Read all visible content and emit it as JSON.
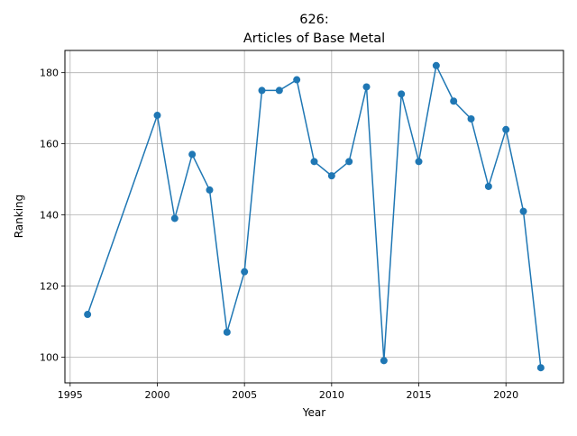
{
  "chart_data": {
    "type": "line",
    "title_line1": "626:",
    "title_line2": "Articles of Base Metal",
    "xlabel": "Year",
    "ylabel": "Ranking",
    "xlim": [
      1994.7,
      2023.3
    ],
    "ylim": [
      92.75,
      186.25
    ],
    "x_ticks": [
      1995,
      2000,
      2005,
      2010,
      2015,
      2020
    ],
    "y_ticks": [
      100,
      120,
      140,
      160,
      180
    ],
    "grid": true,
    "line_color": "#1f77b4",
    "series": [
      {
        "x": [
          1996,
          2000,
          2001,
          2002,
          2003,
          2004,
          2005,
          2006,
          2007,
          2008,
          2009,
          2010,
          2011,
          2012,
          2013,
          2014,
          2015,
          2016,
          2017,
          2018,
          2019,
          2020,
          2021,
          2022
        ],
        "values": [
          112,
          168,
          139,
          157,
          147,
          107,
          124,
          175,
          175,
          178,
          155,
          151,
          155,
          176,
          99,
          174,
          155,
          182,
          172,
          167,
          148,
          164,
          141,
          97
        ]
      }
    ]
  }
}
